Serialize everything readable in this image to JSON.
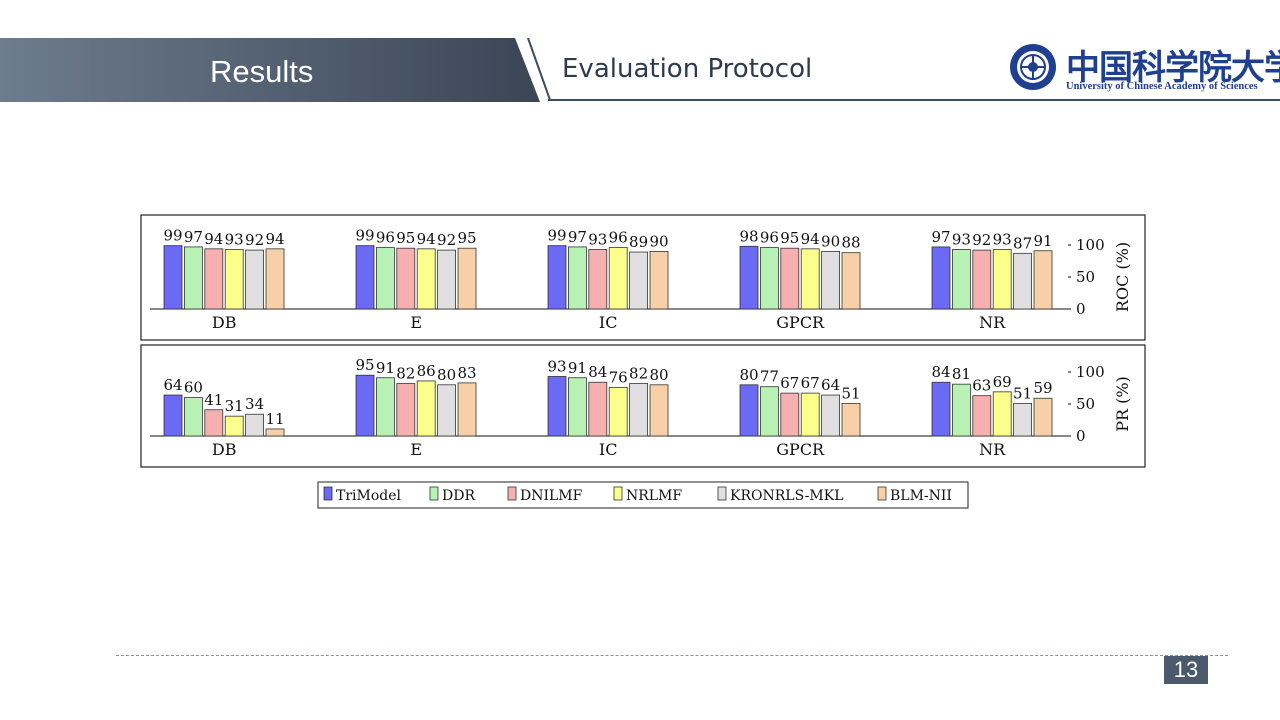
{
  "header": {
    "section": "Results",
    "subtitle": "Evaluation Protocol",
    "logo_cn": "中国科学院大学",
    "logo_en": "University of Chinese Academy of Sciences"
  },
  "page_number": "13",
  "colors": {
    "header_band": "#4a5a6c",
    "accent": "#1f3f8f"
  },
  "chart_data": [
    {
      "type": "bar",
      "ylabel": "ROC (%)",
      "ylim": [
        0,
        100
      ],
      "yticks": [
        "0",
        "50",
        "100"
      ],
      "categories": [
        "DB",
        "E",
        "IC",
        "GPCR",
        "NR"
      ],
      "series": [
        {
          "name": "TriModel",
          "color": "#6a6af4",
          "values": [
            99,
            99,
            99,
            98,
            97
          ]
        },
        {
          "name": "DDR",
          "color": "#b8f2b4",
          "values": [
            97,
            96,
            97,
            96,
            93
          ]
        },
        {
          "name": "DNILMF",
          "color": "#f6b0b0",
          "values": [
            94,
            95,
            93,
            95,
            92
          ]
        },
        {
          "name": "NRLMF",
          "color": "#fdfd8c",
          "values": [
            93,
            94,
            96,
            94,
            93
          ]
        },
        {
          "name": "KRONRLS-MKL",
          "color": "#e0e0e0",
          "values": [
            92,
            92,
            89,
            90,
            87
          ]
        },
        {
          "name": "BLM-NII",
          "color": "#f8d0a8",
          "values": [
            94,
            95,
            90,
            88,
            91
          ]
        }
      ]
    },
    {
      "type": "bar",
      "ylabel": "PR (%)",
      "ylim": [
        0,
        100
      ],
      "yticks": [
        "0",
        "50",
        "100"
      ],
      "categories": [
        "DB",
        "E",
        "IC",
        "GPCR",
        "NR"
      ],
      "series": [
        {
          "name": "TriModel",
          "color": "#6a6af4",
          "values": [
            64,
            95,
            93,
            80,
            84
          ]
        },
        {
          "name": "DDR",
          "color": "#b8f2b4",
          "values": [
            60,
            91,
            91,
            77,
            81
          ]
        },
        {
          "name": "DNILMF",
          "color": "#f6b0b0",
          "values": [
            41,
            82,
            84,
            67,
            63
          ]
        },
        {
          "name": "NRLMF",
          "color": "#fdfd8c",
          "values": [
            31,
            86,
            76,
            67,
            69
          ]
        },
        {
          "name": "KRONRLS-MKL",
          "color": "#e0e0e0",
          "values": [
            34,
            80,
            82,
            64,
            51
          ]
        },
        {
          "name": "BLM-NII",
          "color": "#f8d0a8",
          "values": [
            11,
            83,
            80,
            51,
            59
          ]
        }
      ]
    }
  ],
  "legend": {
    "placement": "bottom",
    "labels": [
      "TriModel",
      "DDR",
      "DNILMF",
      "NRLMF",
      "KRONRLS-MKL",
      "BLM-NII"
    ]
  }
}
